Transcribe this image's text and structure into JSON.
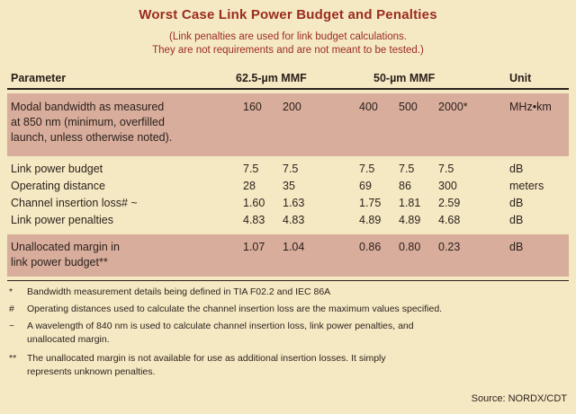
{
  "title": "Worst Case Link Power Budget and Penalties",
  "subtitle": {
    "line1": "(Link penalties are used for link budget calculations.",
    "line2": "They are not requirements and are not meant to be tested.)"
  },
  "headers": {
    "parameter": "Parameter",
    "mmf62": "62.5-µm MMF",
    "mmf50": "50-µm MMF",
    "unit": "Unit"
  },
  "rows": {
    "modal": {
      "label_lines": [
        "Modal bandwidth as measured",
        "at 850 nm (minimum, overfilled",
        "launch, unless otherwise noted)."
      ],
      "values": [
        "160",
        "200",
        "400",
        "500",
        "2000*"
      ],
      "unit": "MHz•km"
    },
    "budget": {
      "label": "Link power budget",
      "values": [
        "7.5",
        "7.5",
        "7.5",
        "7.5",
        "7.5"
      ],
      "unit": "dB"
    },
    "distance": {
      "label": "Operating distance",
      "values": [
        "28",
        "35",
        "69",
        "86",
        "300"
      ],
      "unit": "meters"
    },
    "insertion": {
      "label": "Channel insertion loss# ~",
      "values": [
        "1.60",
        "1.63",
        "1.75",
        "1.81",
        "2.59"
      ],
      "unit": "dB"
    },
    "penalties": {
      "label": "Link power penalties",
      "values": [
        "4.83",
        "4.83",
        "4.89",
        "4.89",
        "4.68"
      ],
      "unit": "dB"
    },
    "margin": {
      "label_lines": [
        "Unallocated margin in",
        "link power budget**"
      ],
      "values": [
        "1.07",
        "1.04",
        "0.86",
        "0.80",
        "0.23"
      ],
      "unit": "dB"
    }
  },
  "footnotes": {
    "f1": {
      "mark": "*",
      "lines": [
        "Bandwidth measurement details being defined in TIA F02.2 and IEC 86A"
      ]
    },
    "f2": {
      "mark": "#",
      "lines": [
        "Operating distances used to calculate the channel insertion loss are the maximum values specified."
      ]
    },
    "f3": {
      "mark": "~",
      "lines": [
        "A wavelength of 840 nm is used to calculate channel insertion loss, link power penalties, and",
        "unallocated margin."
      ]
    },
    "f4": {
      "mark": "**",
      "lines": [
        "The unallocated margin is not available for use as additional insertion losses. It simply",
        "represents unknown penalties."
      ]
    }
  },
  "source": "Source: NORDX/CDT"
}
